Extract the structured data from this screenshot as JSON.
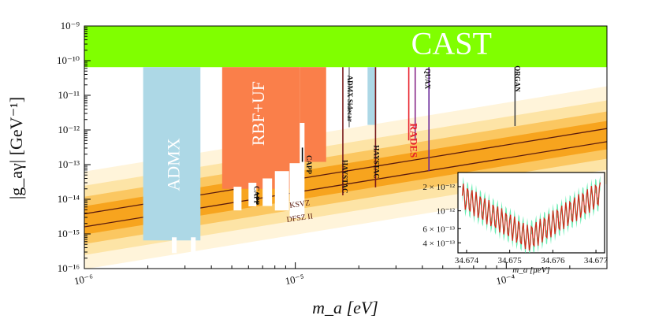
{
  "chart_data": {
    "type": "area",
    "title": "",
    "xlabel": "m_a [eV]",
    "ylabel": "|g_aγ| [GeV⁻¹]",
    "x_scale": "log",
    "y_scale": "log",
    "xlim": [
      1e-06,
      0.0003
    ],
    "ylim": [
      1e-16,
      1e-09
    ],
    "x_ticks": [
      {
        "v": 1e-06,
        "label": "10⁻⁶"
      },
      {
        "v": 1e-05,
        "label": "10⁻⁵"
      },
      {
        "v": 0.0001,
        "label": "10⁻⁴"
      }
    ],
    "y_ticks": [
      {
        "v": 1e-16,
        "label": "10⁻¹⁶"
      },
      {
        "v": 1e-15,
        "label": "10⁻¹⁵"
      },
      {
        "v": 1e-14,
        "label": "10⁻¹⁴"
      },
      {
        "v": 1e-13,
        "label": "10⁻¹³"
      },
      {
        "v": 1e-12,
        "label": "10⁻¹²"
      },
      {
        "v": 1e-11,
        "label": "10⁻¹¹"
      },
      {
        "v": 1e-10,
        "label": "10⁻¹⁰"
      },
      {
        "v": 1e-09,
        "label": "10⁻⁹"
      }
    ],
    "bands": [
      {
        "name": "KSVZ",
        "x": [
          1e-06,
          0.0003
        ],
        "y": [
          3.8e-15,
          1.1e-12
        ],
        "color": "#5a1a0e"
      },
      {
        "name": "DFSZ II",
        "x": [
          1e-06,
          0.0003
        ],
        "y": [
          1.6e-15,
          4.6e-13
        ],
        "color": "#5a1a0e"
      }
    ],
    "exclusions": [
      {
        "name": "CAST",
        "color": "#80ff00",
        "x": [
          1e-06,
          0.0003
        ],
        "y": [
          6.5e-11,
          1e-09
        ]
      },
      {
        "name": "ADMX",
        "color": "#add8e6",
        "x": [
          1.9e-06,
          3.55e-06
        ],
        "y": [
          6.5e-16,
          6.5e-11
        ]
      },
      {
        "name": "RBF+UF",
        "color": "#fa7f4a",
        "x": [
          4.5e-06,
          1.05e-05
        ],
        "y": [
          2e-14,
          6.5e-11
        ]
      },
      {
        "name": "CAPP",
        "color": "#fa7f4a",
        "x": [
          1.05e-05,
          1.4e-05
        ],
        "y": [
          1.2e-13,
          6.5e-11
        ]
      },
      {
        "name": "HAYSTAC",
        "color": "#add8e6",
        "x": [
          2.2e-05,
          2.42e-05
        ],
        "y": [
          1.4e-12,
          6.5e-11
        ]
      }
    ],
    "labels": [
      {
        "text": "CAST",
        "x": 5.5e-05,
        "y": 2.5e-10
      },
      {
        "text": "ADMX",
        "x": 2.7e-06,
        "y": 1e-13
      },
      {
        "text": "RBF+UF",
        "x": 6.8e-06,
        "y": 3e-12
      },
      {
        "text": "KSVZ",
        "x": 1.05e-05,
        "y": 7e-15
      },
      {
        "text": "DFSZ II",
        "x": 1.05e-05,
        "y": 2.8e-15
      },
      {
        "text": "CAPP",
        "x": 6.5e-06,
        "y": 1.3e-14
      },
      {
        "text": "CAPP",
        "x": 1.15e-05,
        "y": 1e-13
      },
      {
        "text": "HAYSTAC",
        "x": 1.7e-05,
        "y": 4.5e-14
      },
      {
        "text": "ADMX Sidecar",
        "x": 1.8e-05,
        "y": 8e-12
      },
      {
        "text": "HAYSTAC",
        "x": 2.4e-05,
        "y": 1.2e-13
      },
      {
        "text": "RADES",
        "x": 3.6e-05,
        "y": 5e-13
      },
      {
        "text": "QUAX",
        "x": 4.2e-05,
        "y": 3e-11
      },
      {
        "text": "ORGAN",
        "x": 0.000112,
        "y": 3e-11
      }
    ],
    "limit_lines": [
      {
        "name": "CAPP",
        "x": 6.6e-06,
        "y": [
          7e-15,
          1.6e-14
        ],
        "color": "#000000"
      },
      {
        "name": "CAPP",
        "x": 1.08e-05,
        "y": [
          1.2e-13,
          3.1e-13
        ],
        "color": "#000000"
      },
      {
        "name": "HAYSTAC",
        "x": 1.68e-05,
        "y": [
          1.3e-14,
          6.5e-11
        ],
        "color": "#7a1a1a"
      },
      {
        "name": "ADMX Sidecar",
        "x": 1.8e-05,
        "y": [
          1.2e-12,
          6.5e-11
        ],
        "color": "#8a8a8a"
      },
      {
        "name": "HAYSTAC",
        "x": 2.4e-05,
        "y": [
          2.2e-14,
          6.5e-11
        ],
        "color": "#7a1a1a"
      },
      {
        "name": "RADES",
        "x": 3.45e-05,
        "y": [
          5e-13,
          6.5e-11
        ],
        "color": "#e8202a"
      },
      {
        "name": "RADES",
        "x": 3.7e-05,
        "y": [
          5e-13,
          6.5e-11
        ],
        "color": "#8a2a8a"
      },
      {
        "name": "QUAX",
        "x": 4.3e-05,
        "y": [
          6.5e-14,
          6.5e-11
        ],
        "color": "#6a2a9a"
      },
      {
        "name": "ORGAN",
        "x": 0.00011,
        "y": [
          1.3e-12,
          6.5e-11
        ],
        "color": "#444444"
      }
    ],
    "inset": {
      "type": "line",
      "xlabel": "m_a [μeV]",
      "xlim": [
        34.6738,
        34.6772
      ],
      "ylim": [
        3e-13,
        3e-12
      ],
      "y_scale": "log",
      "x_ticks": [
        {
          "v": 34.674,
          "label": "34.674"
        },
        {
          "v": 34.675,
          "label": "34.675"
        },
        {
          "v": 34.676,
          "label": "34.676"
        },
        {
          "v": 34.677,
          "label": "34.677"
        }
      ],
      "y_ticks": [
        {
          "v": 2e-12,
          "label": "2 × 10⁻¹²"
        },
        {
          "v": 1e-12,
          "label": "10⁻¹²"
        },
        {
          "v": 6e-13,
          "label": "6 × 10⁻¹³"
        },
        {
          "v": 4e-13,
          "label": "4 × 10⁻¹³"
        }
      ],
      "series": [
        {
          "color": "#d42a1a",
          "band_color": "#44e8a0"
        }
      ]
    }
  }
}
